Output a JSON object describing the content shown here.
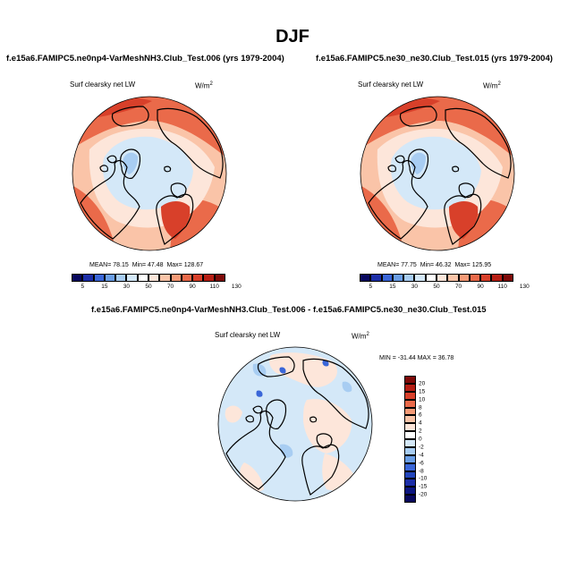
{
  "title": "DJF",
  "panel1": {
    "case": "f.e15a6.FAMIPC5.ne0np4-VarMeshNH3.Club_Test.006 (yrs 1979-2004)",
    "variable": "Surf clearsky net LW",
    "units_base": "W/m",
    "units_exp": "2",
    "mean_label": "MEAN=",
    "mean": "78.15",
    "min_label": "Min=",
    "min": "47.48",
    "max_label": "Max=",
    "max": "128.67"
  },
  "panel2": {
    "case": "f.e15a6.FAMIPC5.ne30_ne30.Club_Test.015 (yrs 1979-2004)",
    "variable": "Surf clearsky net LW",
    "units_base": "W/m",
    "units_exp": "2",
    "mean_label": "MEAN=",
    "mean": "77.75",
    "min_label": "Min=",
    "min": "46.32",
    "max_label": "Max=",
    "max": "125.95"
  },
  "panel3": {
    "case": "f.e15a6.FAMIPC5.ne0np4-VarMeshNH3.Club_Test.006 - f.e15a6.FAMIPC5.ne30_ne30.Club_Test.015",
    "variable": "Surf clearsky net LW",
    "units_base": "W/m",
    "units_exp": "2",
    "minmax": "MIN = -31.44 MAX = 36.78"
  },
  "colorbar_main": {
    "labels": [
      "5",
      "15",
      "30",
      "50",
      "70",
      "90",
      "110",
      "130"
    ],
    "colors": [
      "#08085e",
      "#1c2ea8",
      "#3a66d8",
      "#6a9ee6",
      "#a8cdf2",
      "#d4e8f8",
      "#ffffff",
      "#fde6da",
      "#fac4a8",
      "#f59a76",
      "#ea6a4a",
      "#d8402a",
      "#b61e14",
      "#7e0a08"
    ]
  },
  "colorbar_diff": {
    "labels": [
      "20",
      "15",
      "10",
      "8",
      "6",
      "4",
      "2",
      "0",
      "-2",
      "-4",
      "-6",
      "-8",
      "-10",
      "-15",
      "-20"
    ],
    "colors": [
      "#7e0a08",
      "#b61e14",
      "#d8402a",
      "#ea6a4a",
      "#f59a76",
      "#fac4a8",
      "#fde6da",
      "#ffffff",
      "#d4e8f8",
      "#a8cdf2",
      "#6a9ee6",
      "#3a66d8",
      "#2346bc",
      "#1c2ea8",
      "#0c1680",
      "#08085e"
    ]
  }
}
